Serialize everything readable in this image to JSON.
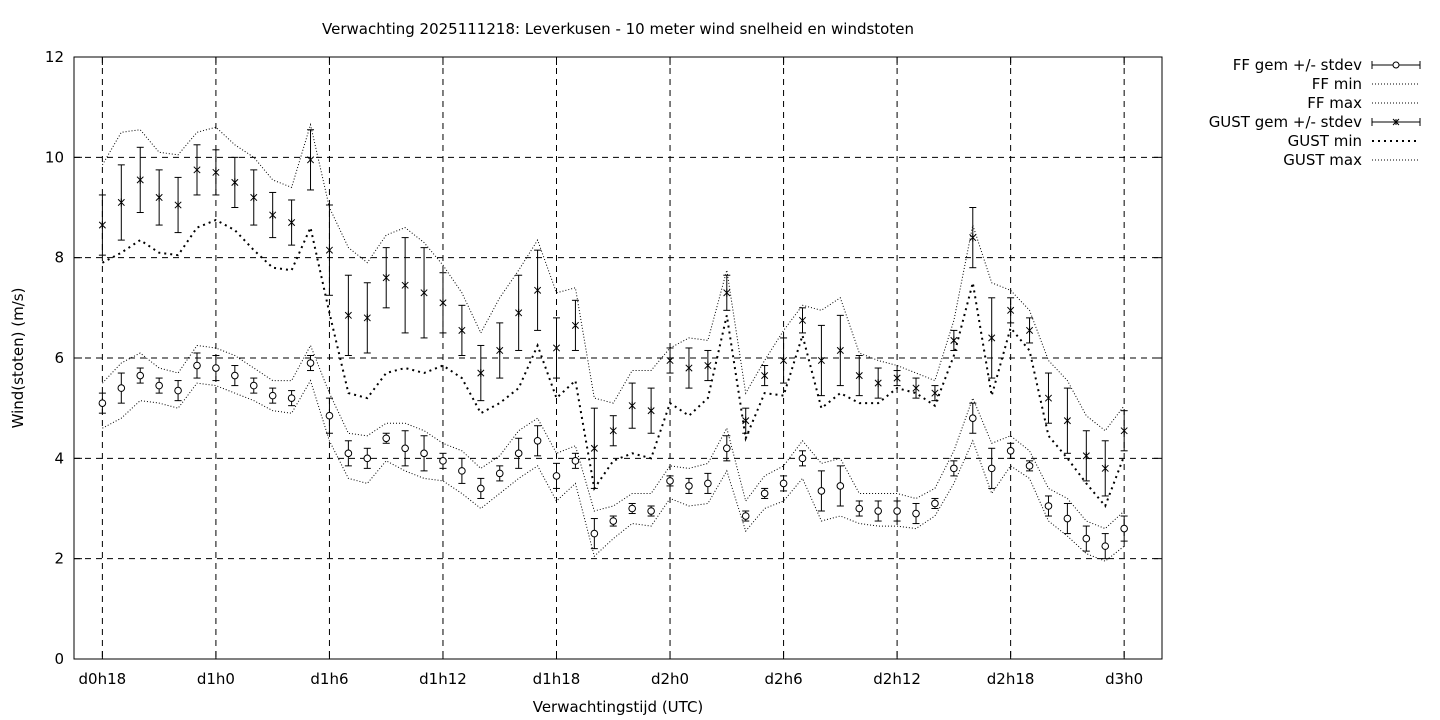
{
  "chart_data": {
    "type": "line",
    "title": "Verwachting 2025111218: Leverkusen - 10 meter wind snelheid en windstoten",
    "xlabel": "Verwachtingstijd (UTC)",
    "ylabel": "Wind(stoten) (m/s)",
    "ylim": [
      0,
      12
    ],
    "y_ticks": [
      "0",
      "2",
      "4",
      "6",
      "8",
      "10",
      "12"
    ],
    "x_tick_labels": [
      "d0h18",
      "d1h0",
      "d1h6",
      "d1h12",
      "d1h18",
      "d2h0",
      "d2h6",
      "d2h12",
      "d2h18",
      "d3h0"
    ],
    "x_tick_hours": [
      18,
      24,
      30,
      36,
      42,
      48,
      54,
      60,
      66,
      72
    ],
    "xlim_hours": [
      16.5,
      74
    ],
    "grid": true,
    "legend_position": "outside-top-right",
    "hours": [
      18,
      19,
      20,
      21,
      22,
      23,
      24,
      25,
      26,
      27,
      28,
      29,
      30,
      31,
      32,
      33,
      34,
      35,
      36,
      37,
      38,
      39,
      40,
      41,
      42,
      43,
      44,
      45,
      46,
      47,
      48,
      49,
      50,
      51,
      52,
      53,
      54,
      55,
      56,
      57,
      58,
      59,
      60,
      61,
      62,
      63,
      64,
      65,
      66,
      67,
      68,
      69,
      70,
      71,
      72
    ],
    "series": [
      {
        "name": "FF gem +/- stdev",
        "mean": [
          5.1,
          5.4,
          5.65,
          5.45,
          5.35,
          5.85,
          5.8,
          5.65,
          5.45,
          5.25,
          5.2,
          5.9,
          4.85,
          4.1,
          4.0,
          4.4,
          4.2,
          4.1,
          3.95,
          3.75,
          3.4,
          3.7,
          4.1,
          4.35,
          3.65,
          3.95,
          2.5,
          2.75,
          3.0,
          2.95,
          3.55,
          3.45,
          3.5,
          4.2,
          2.85,
          3.3,
          3.5,
          4.0,
          3.35,
          3.45,
          3.0,
          2.95,
          2.95,
          2.9,
          3.1,
          3.8,
          4.8,
          3.8,
          4.15,
          3.85,
          3.05,
          2.8,
          2.4,
          2.25,
          2.6
        ],
        "stdev": [
          0.2,
          0.3,
          0.15,
          0.15,
          0.2,
          0.25,
          0.25,
          0.2,
          0.15,
          0.15,
          0.15,
          0.15,
          0.35,
          0.25,
          0.2,
          0.1,
          0.35,
          0.35,
          0.15,
          0.25,
          0.2,
          0.15,
          0.3,
          0.3,
          0.25,
          0.15,
          0.3,
          0.1,
          0.1,
          0.1,
          0.1,
          0.15,
          0.2,
          0.25,
          0.1,
          0.1,
          0.15,
          0.15,
          0.4,
          0.4,
          0.15,
          0.2,
          0.2,
          0.2,
          0.1,
          0.15,
          0.3,
          0.4,
          0.15,
          0.1,
          0.2,
          0.3,
          0.25,
          0.25,
          0.25
        ]
      },
      {
        "name": "FF min",
        "values": [
          4.6,
          4.8,
          5.15,
          5.1,
          5.0,
          5.5,
          5.45,
          5.3,
          5.15,
          4.95,
          4.9,
          5.55,
          4.35,
          3.6,
          3.5,
          3.95,
          3.75,
          3.6,
          3.55,
          3.3,
          3.0,
          3.3,
          3.6,
          3.85,
          3.15,
          3.5,
          2.05,
          2.4,
          2.7,
          2.65,
          3.2,
          3.05,
          3.1,
          3.75,
          2.55,
          3.0,
          3.15,
          3.6,
          2.75,
          2.85,
          2.7,
          2.65,
          2.65,
          2.6,
          2.85,
          3.5,
          4.35,
          3.3,
          3.85,
          3.6,
          2.75,
          2.45,
          2.1,
          1.95,
          2.25
        ]
      },
      {
        "name": "FF max",
        "values": [
          5.5,
          5.9,
          6.1,
          5.8,
          5.7,
          6.25,
          6.2,
          6.05,
          5.8,
          5.55,
          5.55,
          6.25,
          5.3,
          4.5,
          4.45,
          4.7,
          4.7,
          4.55,
          4.3,
          4.15,
          3.8,
          4.05,
          4.55,
          4.8,
          4.1,
          4.25,
          2.95,
          3.05,
          3.3,
          3.3,
          3.85,
          3.8,
          3.9,
          4.6,
          3.15,
          3.65,
          3.85,
          4.35,
          3.9,
          4.0,
          3.3,
          3.3,
          3.3,
          3.2,
          3.4,
          4.15,
          5.2,
          4.3,
          4.45,
          4.15,
          3.4,
          3.2,
          2.75,
          2.6,
          2.95
        ]
      },
      {
        "name": "GUST gem +/- stdev",
        "mean": [
          8.65,
          9.1,
          9.55,
          9.2,
          9.05,
          9.75,
          9.7,
          9.5,
          9.2,
          8.85,
          8.7,
          9.95,
          8.15,
          6.85,
          6.8,
          7.6,
          7.45,
          7.3,
          7.1,
          6.55,
          5.7,
          6.15,
          6.9,
          7.35,
          6.2,
          6.65,
          4.2,
          4.55,
          5.05,
          4.95,
          5.95,
          5.8,
          5.85,
          7.3,
          4.75,
          5.65,
          5.95,
          6.75,
          5.95,
          6.15,
          5.65,
          5.5,
          5.6,
          5.4,
          5.3,
          6.35,
          8.4,
          6.4,
          6.95,
          6.55,
          5.2,
          4.75,
          4.05,
          3.8,
          4.55
        ],
        "stdev": [
          0.6,
          0.75,
          0.65,
          0.55,
          0.55,
          0.5,
          0.45,
          0.5,
          0.55,
          0.45,
          0.45,
          0.6,
          0.9,
          0.8,
          0.7,
          0.6,
          0.95,
          0.9,
          0.6,
          0.5,
          0.55,
          0.55,
          0.75,
          0.8,
          0.6,
          0.5,
          0.8,
          0.3,
          0.45,
          0.45,
          0.25,
          0.4,
          0.3,
          0.35,
          0.25,
          0.2,
          0.45,
          0.25,
          0.7,
          0.7,
          0.4,
          0.3,
          0.15,
          0.2,
          0.15,
          0.2,
          0.6,
          0.8,
          0.25,
          0.25,
          0.5,
          0.65,
          0.5,
          0.55,
          0.4
        ]
      },
      {
        "name": "GUST min",
        "values": [
          7.9,
          8.1,
          8.35,
          8.1,
          8.05,
          8.6,
          8.75,
          8.55,
          8.15,
          7.8,
          7.75,
          8.6,
          6.9,
          5.3,
          5.2,
          5.7,
          5.8,
          5.7,
          5.85,
          5.6,
          4.9,
          5.1,
          5.4,
          6.25,
          5.2,
          5.55,
          3.4,
          3.95,
          4.1,
          4.0,
          5.1,
          4.85,
          5.2,
          6.85,
          4.4,
          5.3,
          5.25,
          6.45,
          5.0,
          5.3,
          5.1,
          5.1,
          5.4,
          5.3,
          5.05,
          6.05,
          7.5,
          5.25,
          6.6,
          6.15,
          4.45,
          4.0,
          3.5,
          3.05,
          4.05
        ]
      },
      {
        "name": "GUST max",
        "values": [
          9.85,
          10.5,
          10.55,
          10.1,
          10.05,
          10.5,
          10.6,
          10.25,
          10.0,
          9.55,
          9.4,
          10.65,
          9.0,
          8.2,
          7.9,
          8.45,
          8.6,
          8.3,
          7.85,
          7.3,
          6.5,
          7.2,
          7.75,
          8.35,
          7.3,
          7.4,
          5.2,
          5.1,
          5.75,
          5.75,
          6.2,
          6.4,
          6.35,
          7.75,
          5.3,
          5.95,
          6.55,
          7.05,
          6.95,
          7.2,
          6.1,
          5.95,
          5.85,
          5.7,
          5.55,
          6.75,
          8.65,
          7.5,
          7.35,
          6.95,
          5.95,
          5.55,
          4.85,
          4.55,
          5.05
        ]
      }
    ]
  }
}
